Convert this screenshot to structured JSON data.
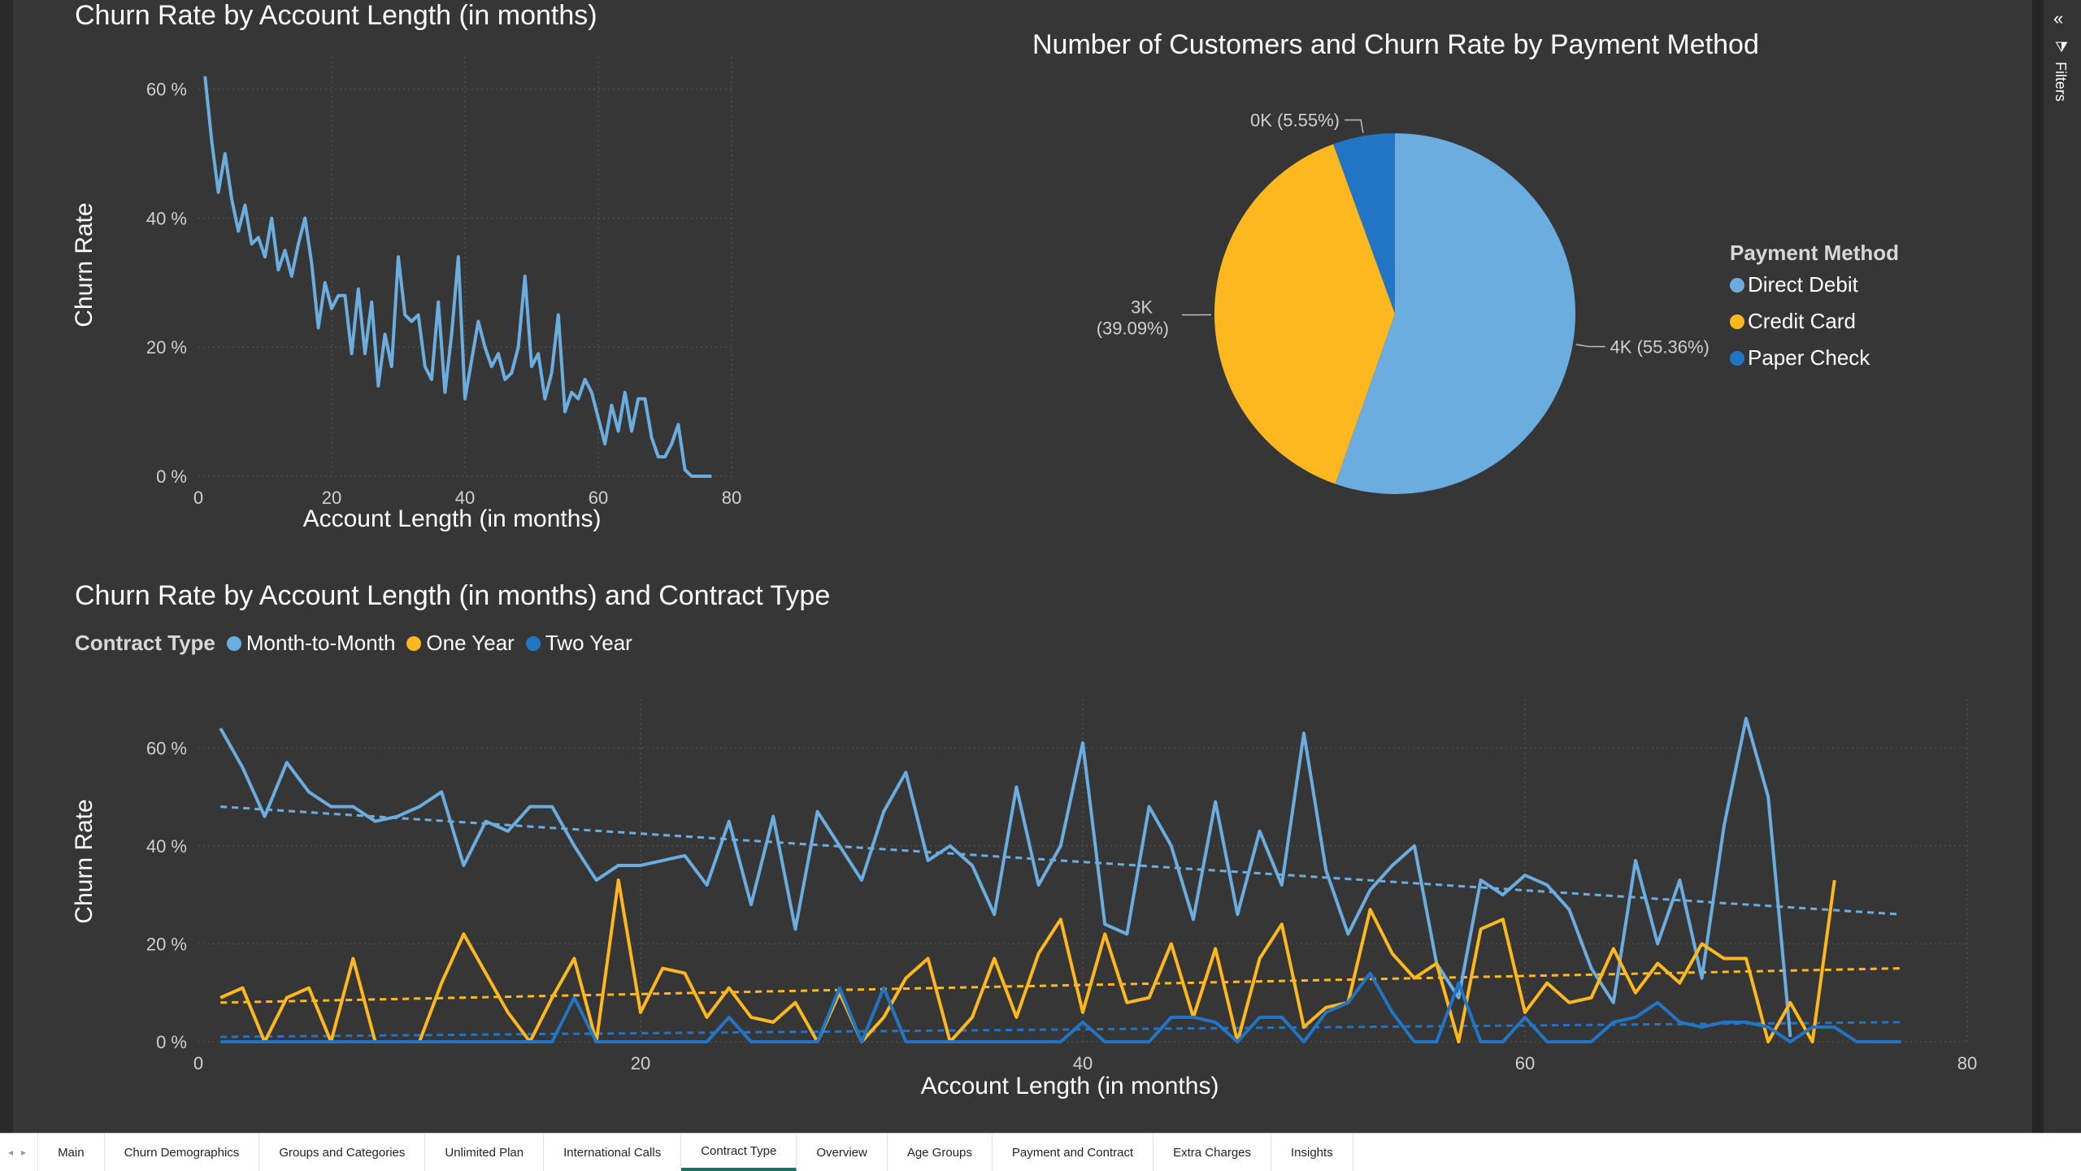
{
  "chart1": {
    "title": "Churn Rate by Account Length (in months)",
    "xlabel": "Account Length (in months)",
    "ylabel": "Churn Rate",
    "chart_data": {
      "type": "line",
      "title": "Churn Rate by Account Length (in months)",
      "xlabel": "Account Length (in months)",
      "ylabel": "Churn Rate",
      "xlim": [
        0,
        80
      ],
      "ylim": [
        0,
        65
      ],
      "x_ticks": [
        "0",
        "20",
        "40",
        "60",
        "80"
      ],
      "y_ticks": [
        "0 %",
        "20 %",
        "40 %",
        "60 %"
      ],
      "color": "#6CADDF",
      "x": [
        1,
        2,
        3,
        4,
        5,
        6,
        7,
        8,
        9,
        10,
        11,
        12,
        13,
        14,
        15,
        16,
        17,
        18,
        19,
        20,
        21,
        22,
        23,
        24,
        25,
        26,
        27,
        28,
        29,
        30,
        31,
        32,
        33,
        34,
        35,
        36,
        37,
        38,
        39,
        40,
        41,
        42,
        43,
        44,
        45,
        46,
        47,
        48,
        49,
        50,
        51,
        52,
        53,
        54,
        55,
        56,
        57,
        58,
        59,
        60,
        61,
        62,
        63,
        64,
        65,
        66,
        67,
        68,
        69,
        70,
        71,
        72,
        73,
        74,
        75,
        76,
        77
      ],
      "y": [
        62,
        52,
        44,
        50,
        43,
        38,
        42,
        36,
        37,
        34,
        40,
        32,
        35,
        31,
        36,
        40,
        33,
        23,
        30,
        26,
        28,
        28,
        19,
        29,
        19,
        27,
        14,
        22,
        17,
        34,
        25,
        24,
        25,
        17,
        15,
        27,
        13,
        22,
        34,
        12,
        18,
        24,
        20,
        17,
        19,
        15,
        16,
        20,
        31,
        17,
        19,
        12,
        16,
        25,
        10,
        13,
        12,
        15,
        13,
        9,
        5,
        11,
        7,
        13,
        7,
        12,
        12,
        6,
        3,
        3,
        5,
        8,
        1,
        0,
        0,
        0,
        0
      ]
    }
  },
  "chart2": {
    "title": "Number of Customers and Churn Rate by Payment Method",
    "legend_title": "Payment Method",
    "chart_data": {
      "type": "pie",
      "title": "Number of Customers and Churn Rate by Payment Method",
      "legend_position": "right",
      "slices": [
        {
          "name": "Direct Debit",
          "percent": 55.36,
          "label": "4K (55.36%)",
          "color": "#6CADDF"
        },
        {
          "name": "Credit Card",
          "percent": 39.09,
          "label_line1": "3K",
          "label_line2": "(39.09%)",
          "color": "#FDB81F"
        },
        {
          "name": "Paper Check",
          "percent": 5.55,
          "label": "0K (5.55%)",
          "color": "#2275C4"
        }
      ]
    }
  },
  "chart3": {
    "title": "Churn Rate by Account Length (in months) and Contract Type",
    "legend_title": "Contract Type",
    "xlabel": "Account Length (in months)",
    "ylabel": "Churn Rate",
    "chart_data": {
      "type": "line",
      "title": "Churn Rate by Account Length (in months) and Contract Type",
      "xlabel": "Account Length (in months)",
      "ylabel": "Churn Rate",
      "xlim": [
        0,
        80
      ],
      "ylim": [
        0,
        70
      ],
      "x_ticks": [
        "0",
        "20",
        "40",
        "60",
        "80"
      ],
      "y_ticks": [
        "0 %",
        "20 %",
        "40 %",
        "60 %"
      ],
      "legend_position": "top-left",
      "series": [
        {
          "name": "Month-to-Month",
          "color": "#6CADDF",
          "x": [
            1,
            2,
            3,
            4,
            5,
            6,
            7,
            8,
            9,
            10,
            11,
            12,
            13,
            14,
            15,
            16,
            17,
            18,
            19,
            20,
            21,
            22,
            23,
            24,
            25,
            26,
            27,
            28,
            29,
            30,
            31,
            32,
            33,
            34,
            35,
            36,
            37,
            38,
            39,
            40,
            41,
            42,
            43,
            44,
            45,
            46,
            47,
            48,
            49,
            50,
            51,
            52,
            53,
            54,
            55,
            56,
            57,
            58,
            59,
            60,
            61,
            62,
            63,
            64,
            65,
            66,
            67,
            68,
            69,
            70,
            71,
            72
          ],
          "y": [
            64,
            56,
            46,
            57,
            51,
            48,
            48,
            45,
            46,
            48,
            51,
            36,
            45,
            43,
            48,
            48,
            40,
            33,
            36,
            36,
            37,
            38,
            32,
            45,
            28,
            46,
            23,
            47,
            40,
            33,
            47,
            55,
            37,
            40,
            36,
            26,
            52,
            32,
            40,
            61,
            24,
            22,
            48,
            40,
            25,
            49,
            26,
            43,
            32,
            63,
            35,
            22,
            31,
            36,
            40,
            16,
            9,
            33,
            30,
            34,
            32,
            27,
            15,
            8,
            37,
            20,
            33,
            13,
            44,
            66,
            50,
            1
          ],
          "trend": [
            48,
            26
          ]
        },
        {
          "name": "One Year",
          "color": "#FDB81F",
          "x": [
            1,
            2,
            3,
            4,
            5,
            6,
            7,
            8,
            9,
            10,
            11,
            12,
            13,
            14,
            15,
            16,
            17,
            18,
            19,
            20,
            21,
            22,
            23,
            24,
            25,
            26,
            27,
            28,
            29,
            30,
            31,
            32,
            33,
            34,
            35,
            36,
            37,
            38,
            39,
            40,
            41,
            42,
            43,
            44,
            45,
            46,
            47,
            48,
            49,
            50,
            51,
            52,
            53,
            54,
            55,
            56,
            57,
            58,
            59,
            60,
            61,
            62,
            63,
            64,
            65,
            66,
            67,
            68,
            69,
            70,
            71,
            72,
            73,
            74
          ],
          "y": [
            9,
            11,
            0,
            9,
            11,
            0,
            17,
            0,
            0,
            0,
            12,
            22,
            14,
            6,
            0,
            9,
            17,
            0,
            33,
            6,
            15,
            14,
            5,
            11,
            5,
            4,
            8,
            0,
            10,
            0,
            5,
            13,
            17,
            0,
            5,
            17,
            5,
            18,
            25,
            6,
            22,
            8,
            9,
            20,
            5,
            19,
            0,
            17,
            24,
            3,
            7,
            8,
            27,
            18,
            13,
            16,
            0,
            23,
            25,
            6,
            12,
            8,
            9,
            19,
            10,
            16,
            12,
            20,
            17,
            17,
            0,
            8,
            0,
            33
          ],
          "trend": [
            8,
            15
          ]
        },
        {
          "name": "Two Year",
          "color": "#2275C4",
          "x": [
            1,
            2,
            3,
            4,
            5,
            6,
            7,
            8,
            9,
            10,
            11,
            12,
            13,
            14,
            15,
            16,
            17,
            18,
            19,
            20,
            21,
            22,
            23,
            24,
            25,
            26,
            27,
            28,
            29,
            30,
            31,
            32,
            33,
            34,
            35,
            36,
            37,
            38,
            39,
            40,
            41,
            42,
            43,
            44,
            45,
            46,
            47,
            48,
            49,
            50,
            51,
            52,
            53,
            54,
            55,
            56,
            57,
            58,
            59,
            60,
            61,
            62,
            63,
            64,
            65,
            66,
            67,
            68,
            69,
            70,
            71,
            72,
            73,
            74,
            75,
            76,
            77
          ],
          "y": [
            0,
            0,
            0,
            0,
            0,
            0,
            0,
            0,
            0,
            0,
            0,
            0,
            0,
            0,
            0,
            0,
            9,
            0,
            0,
            0,
            0,
            0,
            0,
            5,
            0,
            0,
            0,
            0,
            11,
            0,
            11,
            0,
            0,
            0,
            0,
            0,
            0,
            0,
            0,
            4,
            0,
            0,
            0,
            5,
            5,
            4,
            0,
            5,
            5,
            0,
            6,
            8,
            14,
            6,
            0,
            0,
            12,
            0,
            0,
            5,
            0,
            0,
            0,
            4,
            5,
            8,
            4,
            3,
            4,
            4,
            3,
            0,
            3,
            3,
            0,
            0,
            0
          ],
          "trend": [
            1,
            4
          ]
        }
      ]
    }
  },
  "filters": {
    "label": "Filters"
  },
  "tabs": [
    {
      "label": "Main"
    },
    {
      "label": "Churn Demographics"
    },
    {
      "label": "Groups and Categories"
    },
    {
      "label": "Unlimited Plan"
    },
    {
      "label": "International Calls"
    },
    {
      "label": "Contract Type",
      "active": true
    },
    {
      "label": "Overview"
    },
    {
      "label": "Age Groups"
    },
    {
      "label": "Payment and Contract"
    },
    {
      "label": "Extra Charges"
    },
    {
      "label": "Insights"
    }
  ]
}
